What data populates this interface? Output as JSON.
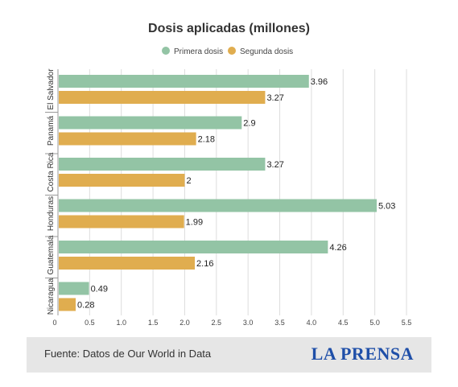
{
  "colors": {
    "series_1": "#93c4a5",
    "series_2": "#e0ad4f",
    "logo": "#1f4fa8",
    "footer_bg": "#e6e6e6",
    "grid": "#dddddd"
  },
  "chart_data": {
    "type": "bar",
    "orientation": "horizontal",
    "title": "Dosis aplicadas (millones)",
    "categories": [
      "El Salvador",
      "Panamá",
      "Costa Rica",
      "Honduras",
      "Guatemala",
      "Nicaragua"
    ],
    "series": [
      {
        "name": "Primera dosis",
        "values": [
          3.96,
          2.9,
          3.27,
          5.03,
          4.26,
          0.49
        ]
      },
      {
        "name": "Segunda dosis",
        "values": [
          3.27,
          2.18,
          2,
          1.99,
          2.16,
          0.28
        ]
      }
    ],
    "value_labels": [
      [
        "3.96",
        "2.9",
        "3.27",
        "5.03",
        "4.26",
        "0.49"
      ],
      [
        "3.27",
        "2.18",
        "2",
        "1.99",
        "2.16",
        "0.28"
      ]
    ],
    "xlim": [
      0,
      5.5
    ],
    "xticks": [
      "0",
      "0.5",
      "1.0",
      "1.5",
      "2.0",
      "2.5",
      "3.0",
      "3.5",
      "4.0",
      "4.5",
      "5.0",
      "5.5"
    ],
    "grid": true,
    "legend": "top-center"
  },
  "footer": {
    "source": "Fuente: Datos de Our World in Data",
    "logo_text": "LA PRENSA"
  }
}
